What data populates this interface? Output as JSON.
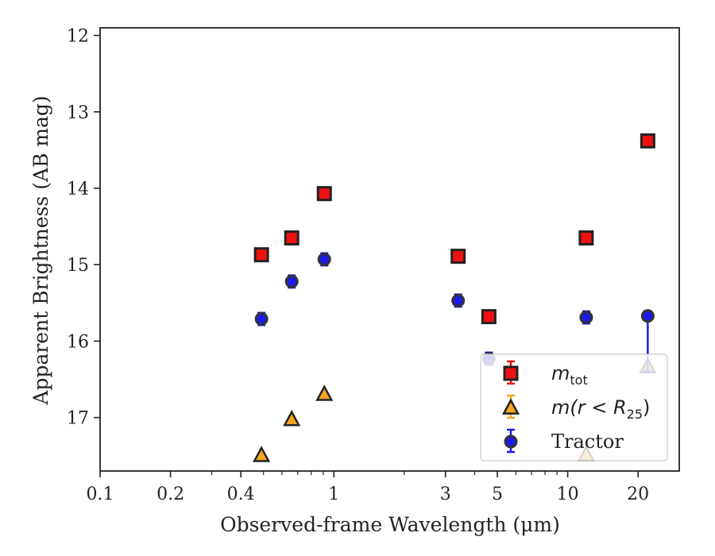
{
  "chart_data": {
    "type": "scatter",
    "xlabel": "Observed-frame Wavelength (μm)",
    "ylabel": "Apparent Brightness (AB mag)",
    "x_scale": "log",
    "y_inverted": true,
    "xlim": [
      0.1,
      30
    ],
    "ylim": [
      17.7,
      11.9
    ],
    "x_ticks": [
      0.1,
      0.2,
      0.4,
      1,
      3,
      5,
      10,
      20
    ],
    "x_tick_labels": [
      "0.1",
      "0.2",
      "0.4",
      "1",
      "3",
      "5",
      "10",
      "20"
    ],
    "y_ticks": [
      12,
      13,
      14,
      15,
      16,
      17
    ],
    "y_tick_labels": [
      "12",
      "13",
      "14",
      "15",
      "16",
      "17"
    ],
    "legend_placement": "lower right",
    "series": [
      {
        "name": "m_tot",
        "legend_text": {
          "main": "m",
          "sub": "tot"
        },
        "marker": "square",
        "color": "#ee1111",
        "points": [
          {
            "x": 0.49,
            "y": 14.87,
            "yerr": 0.07
          },
          {
            "x": 0.66,
            "y": 14.65,
            "yerr": 0.07
          },
          {
            "x": 0.91,
            "y": 14.07,
            "yerr": 0.07
          },
          {
            "x": 3.4,
            "y": 14.89,
            "yerr": 0.07
          },
          {
            "x": 4.6,
            "y": 15.68,
            "yerr": 0.07
          },
          {
            "x": 12.0,
            "y": 14.65,
            "yerr": 0.07
          },
          {
            "x": 22.0,
            "y": 13.38,
            "yerr": 0.07
          }
        ]
      },
      {
        "name": "m(r < R_25)",
        "legend_text": {
          "main": "m(r < R",
          "sub": "25",
          "tail": ")"
        },
        "marker": "triangle",
        "color": "#f5a623",
        "points": [
          {
            "x": 0.49,
            "y": 17.49
          },
          {
            "x": 0.66,
            "y": 17.02
          },
          {
            "x": 0.91,
            "y": 16.69
          },
          {
            "x": 12.0,
            "y": 17.48
          },
          {
            "x": 22.0,
            "y": 16.33
          }
        ]
      },
      {
        "name": "Tractor",
        "legend_text": {
          "main": "Tractor"
        },
        "marker": "circle",
        "color": "#1a1aee",
        "points": [
          {
            "x": 0.49,
            "y": 15.71,
            "yerr": 0.08
          },
          {
            "x": 0.66,
            "y": 15.22,
            "yerr": 0.08
          },
          {
            "x": 0.91,
            "y": 14.93,
            "yerr": 0.08
          },
          {
            "x": 3.4,
            "y": 15.47,
            "yerr": 0.08
          },
          {
            "x": 4.6,
            "y": 16.23,
            "yerr": 0.08
          },
          {
            "x": 12.0,
            "y": 15.69,
            "yerr": 0.08
          },
          {
            "x": 22.0,
            "y": 15.67,
            "yerr_low": 0.05,
            "yerr_high": 0.72
          }
        ]
      }
    ]
  }
}
